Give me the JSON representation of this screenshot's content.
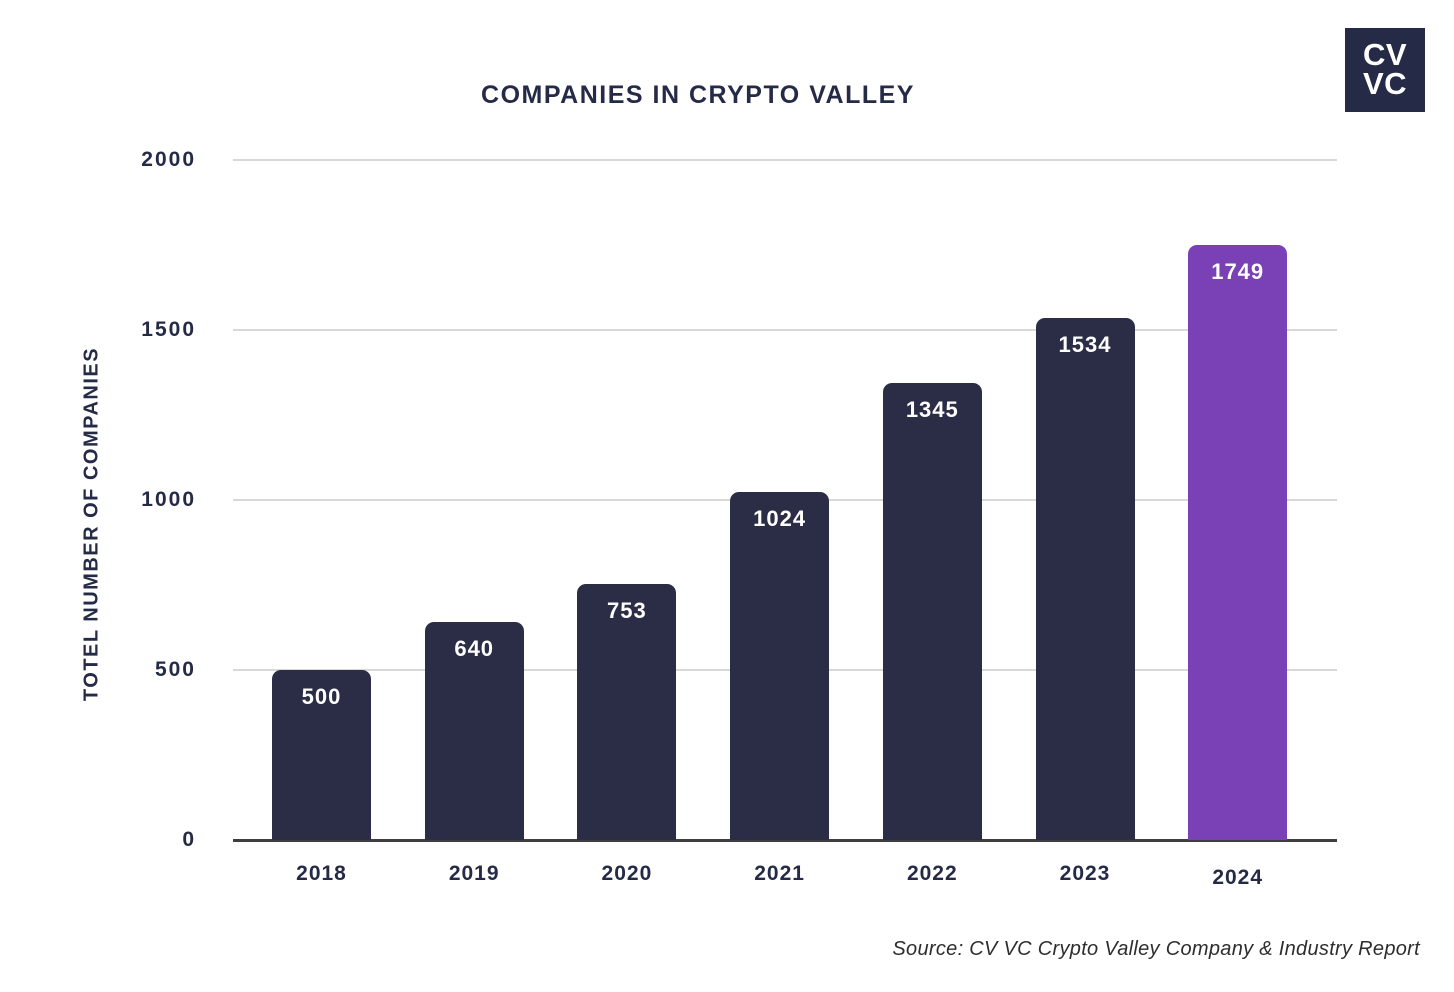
{
  "chart_data": {
    "type": "bar",
    "title": "COMPANIES IN CRYPTO VALLEY",
    "xlabel": "",
    "ylabel": "TOTEL NUMBER OF COMPANIES",
    "categories": [
      "2018",
      "2019",
      "2020",
      "2021",
      "2022",
      "2023",
      "2024"
    ],
    "values": [
      500,
      640,
      753,
      1024,
      1345,
      1534,
      1749
    ],
    "yticks": [
      0,
      500,
      1000,
      1500,
      2000
    ],
    "ylim": [
      0,
      2000
    ],
    "grid": true,
    "legend": false,
    "bar_color": "#2a2d45",
    "highlight_index": 6,
    "highlight_color": "#7a40b5",
    "value_label_color": "#ffffff"
  },
  "logo": {
    "line1": "CV",
    "line2": "VC",
    "bg_color": "#252b47",
    "text_color": "#ffffff"
  },
  "source": "Source: CV VC Crypto Valley Company & Industry Report",
  "colors": {
    "text": "#252b47",
    "gridline": "#d8d8d8",
    "axis_line": "#3f3f3f",
    "background": "#ffffff"
  }
}
